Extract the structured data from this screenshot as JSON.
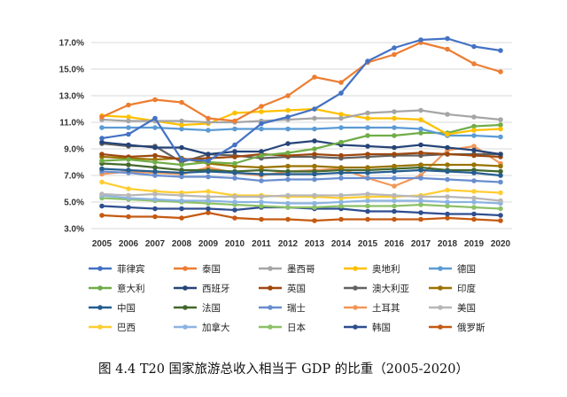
{
  "caption": "图 4.4 T20 国家旅游总收入相当于 GDP 的比重（2005-2020）",
  "chart_data": {
    "type": "line",
    "title": "",
    "xlabel": "",
    "ylabel": "",
    "categories": [
      "2005",
      "2006",
      "2007",
      "2008",
      "2009",
      "2010",
      "2011",
      "2012",
      "2013",
      "2014",
      "2015",
      "2016",
      "2017",
      "2018",
      "2019",
      "2020"
    ],
    "yticks": [
      "17.0%",
      "15.0%",
      "13.0%",
      "11.0%",
      "9.0%",
      "7.0%",
      "5.0%",
      "3.0%"
    ],
    "ylim": [
      3.0,
      17.5
    ],
    "grid": "horizontal",
    "legend_position": "bottom",
    "series": [
      {
        "name": "菲律宾",
        "color": "#4472C4",
        "values": [
          9.8,
          10.1,
          11.3,
          8.2,
          8.1,
          9.3,
          10.9,
          11.4,
          12.0,
          13.2,
          15.6,
          16.6,
          17.2,
          17.3,
          16.7,
          16.4
        ]
      },
      {
        "name": "泰国",
        "color": "#ED7D31",
        "values": [
          11.4,
          12.3,
          12.7,
          12.5,
          11.3,
          11.1,
          12.2,
          13.0,
          14.4,
          14.0,
          15.5,
          16.1,
          17.0,
          16.5,
          15.4,
          14.8
        ]
      },
      {
        "name": "墨西哥",
        "color": "#A5A5A5",
        "values": [
          11.2,
          11.1,
          11.1,
          11.1,
          11.0,
          11.0,
          11.1,
          11.2,
          11.3,
          11.3,
          11.7,
          11.8,
          11.9,
          11.6,
          11.4,
          11.2
        ]
      },
      {
        "name": "奥地利",
        "color": "#FFC000",
        "values": [
          11.5,
          11.4,
          11.1,
          10.8,
          10.9,
          11.7,
          11.8,
          11.9,
          12.0,
          11.6,
          11.3,
          11.3,
          11.2,
          10.1,
          10.4,
          10.5
        ]
      },
      {
        "name": "德国",
        "color": "#5B9BD5",
        "values": [
          10.6,
          10.6,
          10.6,
          10.5,
          10.4,
          10.5,
          10.5,
          10.5,
          10.5,
          10.6,
          10.6,
          10.6,
          10.5,
          10.0,
          10.0,
          9.9
        ]
      },
      {
        "name": "意大利",
        "color": "#70AD47",
        "values": [
          8.1,
          8.2,
          8.0,
          7.8,
          8.0,
          7.9,
          8.5,
          8.7,
          9.0,
          9.5,
          10.0,
          10.0,
          10.2,
          10.2,
          10.7,
          10.8
        ]
      },
      {
        "name": "西班牙",
        "color": "#264478",
        "values": [
          9.5,
          9.3,
          9.1,
          9.1,
          8.6,
          8.8,
          8.8,
          9.4,
          9.6,
          9.3,
          9.2,
          9.1,
          9.3,
          9.1,
          8.9,
          8.6
        ]
      },
      {
        "name": "英国",
        "color": "#9E480E",
        "values": [
          8.6,
          8.4,
          8.5,
          8.2,
          8.3,
          8.4,
          8.6,
          8.5,
          8.6,
          8.5,
          8.6,
          8.6,
          8.7,
          8.6,
          8.5,
          8.4
        ]
      },
      {
        "name": "澳大利亚",
        "color": "#636363",
        "values": [
          9.4,
          9.2,
          9.2,
          8.0,
          8.6,
          8.5,
          8.3,
          8.4,
          8.4,
          8.3,
          8.4,
          8.5,
          8.5,
          8.6,
          8.6,
          8.6
        ]
      },
      {
        "name": "印度",
        "color": "#997300",
        "values": [
          8.4,
          8.3,
          8.2,
          8.3,
          7.9,
          7.7,
          7.6,
          7.7,
          7.7,
          7.6,
          7.6,
          7.7,
          7.8,
          7.8,
          7.8,
          7.7
        ]
      },
      {
        "name": "中国",
        "color": "#255E91",
        "values": [
          7.5,
          7.4,
          7.3,
          7.2,
          7.3,
          7.2,
          7.1,
          7.1,
          7.1,
          7.2,
          7.2,
          7.3,
          7.4,
          7.3,
          7.2,
          7.0
        ]
      },
      {
        "name": "法国",
        "color": "#43682B",
        "values": [
          7.9,
          7.8,
          7.6,
          7.4,
          7.4,
          7.3,
          7.4,
          7.3,
          7.3,
          7.4,
          7.4,
          7.5,
          7.6,
          7.4,
          7.4,
          7.3
        ]
      },
      {
        "name": "瑞士",
        "color": "#698ED0",
        "values": [
          7.3,
          7.2,
          7.0,
          6.9,
          6.9,
          6.8,
          6.6,
          6.7,
          6.7,
          6.8,
          6.8,
          6.8,
          6.8,
          6.7,
          6.6,
          6.5
        ]
      },
      {
        "name": "土耳其",
        "color": "#F1975A",
        "values": [
          7.1,
          7.3,
          7.2,
          7.1,
          7.6,
          7.2,
          7.0,
          7.3,
          7.4,
          7.5,
          6.8,
          6.2,
          7.0,
          8.9,
          9.2,
          7.9
        ]
      },
      {
        "name": "美国",
        "color": "#B7B7B7",
        "values": [
          5.6,
          5.5,
          5.6,
          5.5,
          5.4,
          5.4,
          5.4,
          5.5,
          5.5,
          5.5,
          5.6,
          5.5,
          5.4,
          5.4,
          5.3,
          5.1
        ]
      },
      {
        "name": "巴西",
        "color": "#FFCD33",
        "values": [
          6.5,
          6.0,
          5.8,
          5.7,
          5.8,
          5.5,
          5.5,
          5.4,
          5.4,
          5.3,
          5.4,
          5.4,
          5.5,
          5.9,
          5.8,
          5.7
        ]
      },
      {
        "name": "加拿大",
        "color": "#8CB4E1",
        "values": [
          5.5,
          5.3,
          5.2,
          5.1,
          5.1,
          5.0,
          5.0,
          4.9,
          4.9,
          5.0,
          5.1,
          5.1,
          5.1,
          5.0,
          5.0,
          4.9
        ]
      },
      {
        "name": "日本",
        "color": "#8CC168",
        "values": [
          5.3,
          5.2,
          5.1,
          5.0,
          4.9,
          4.8,
          4.7,
          4.6,
          4.6,
          4.7,
          4.7,
          4.7,
          4.8,
          4.7,
          4.6,
          4.5
        ]
      },
      {
        "name": "韩国",
        "color": "#2E4E8F",
        "values": [
          4.7,
          4.6,
          4.5,
          4.5,
          4.5,
          4.4,
          4.6,
          4.6,
          4.5,
          4.5,
          4.3,
          4.3,
          4.2,
          4.1,
          4.1,
          4.0
        ]
      },
      {
        "name": "俄罗斯",
        "color": "#C55A11",
        "values": [
          4.0,
          3.9,
          3.9,
          3.8,
          4.2,
          3.8,
          3.7,
          3.7,
          3.6,
          3.7,
          3.7,
          3.7,
          3.7,
          3.8,
          3.7,
          3.6
        ]
      }
    ]
  }
}
